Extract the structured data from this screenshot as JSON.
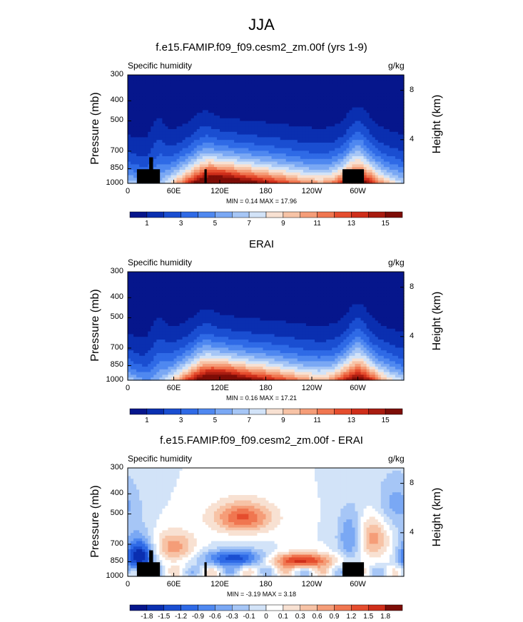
{
  "page_title": "JJA",
  "chart_data": [
    {
      "type": "heatmap",
      "panel_title": "f.e15.FAMIP.f09_f09.cesm2_zm.00f (yrs 1-9)",
      "left_label": "Specific humidity",
      "units": "g/kg",
      "ylabel": "Pressure (mb)",
      "ylabel_right": "Height (km)",
      "pressure_ticks": [
        "300",
        "400",
        "500",
        "700",
        "850",
        "1000"
      ],
      "height_ticks": [
        "8",
        "4"
      ],
      "x_ticks": [
        "0",
        "60E",
        "120E",
        "180",
        "120W",
        "60W"
      ],
      "min_max": "MIN =  0.14  MAX =  17.96",
      "colorbar_labels": [
        "1",
        "3",
        "5",
        "7",
        "9",
        "11",
        "13",
        "15"
      ],
      "colorbar_colors": [
        "#06168c",
        "#0a2fb0",
        "#1a4ed1",
        "#2f6ae6",
        "#4f88f0",
        "#7aa8f4",
        "#a6c6f6",
        "#d2e3f8",
        "#f8e1d2",
        "#f7c3a6",
        "#f59d78",
        "#f07650",
        "#e54d2e",
        "#cf2e1a",
        "#a81c10",
        "#7d0d07"
      ],
      "value_range": [
        0,
        18
      ]
    },
    {
      "type": "heatmap",
      "panel_title": "ERAI",
      "left_label": "Specific humidity",
      "units": "g/kg",
      "ylabel": "Pressure (mb)",
      "ylabel_right": "Height (km)",
      "pressure_ticks": [
        "300",
        "400",
        "500",
        "700",
        "850",
        "1000"
      ],
      "height_ticks": [
        "8",
        "4"
      ],
      "x_ticks": [
        "0",
        "60E",
        "120E",
        "180",
        "120W",
        "60W"
      ],
      "min_max": "MIN =  0.16  MAX =  17.21",
      "colorbar_labels": [
        "1",
        "3",
        "5",
        "7",
        "9",
        "11",
        "13",
        "15"
      ],
      "colorbar_colors": [
        "#06168c",
        "#0a2fb0",
        "#1a4ed1",
        "#2f6ae6",
        "#4f88f0",
        "#7aa8f4",
        "#a6c6f6",
        "#d2e3f8",
        "#f8e1d2",
        "#f7c3a6",
        "#f59d78",
        "#f07650",
        "#e54d2e",
        "#cf2e1a",
        "#a81c10",
        "#7d0d07"
      ],
      "value_range": [
        0,
        18
      ]
    },
    {
      "type": "heatmap",
      "panel_title": "f.e15.FAMIP.f09_f09.cesm2_zm.00f - ERAI",
      "left_label": "Specific humidity",
      "units": "g/kg",
      "ylabel": "Pressure (mb)",
      "ylabel_right": "Height (km)",
      "pressure_ticks": [
        "300",
        "400",
        "500",
        "700",
        "850",
        "1000"
      ],
      "height_ticks": [
        "8",
        "4"
      ],
      "x_ticks": [
        "0",
        "60E",
        "120E",
        "180",
        "120W",
        "60W"
      ],
      "min_max": "MIN = -3.19  MAX =  3.18",
      "colorbar_labels": [
        "-1.8",
        "-1.5",
        "-1.2",
        "-0.9",
        "-0.6",
        "-0.3",
        "-0.1",
        "0",
        "0.1",
        "0.3",
        "0.6",
        "0.9",
        "1.2",
        "1.5",
        "1.8"
      ],
      "colorbar_colors": [
        "#06168c",
        "#0a2fb0",
        "#1a4ed1",
        "#2f6ae6",
        "#4f88f0",
        "#7aa8f4",
        "#a6c6f6",
        "#d2e3f8",
        "#ffffff",
        "#f8e1d2",
        "#f7c3a6",
        "#f59d78",
        "#f07650",
        "#e54d2e",
        "#cf2e1a",
        "#7d0d07"
      ],
      "value_range": [
        -2.0,
        2.0
      ]
    }
  ]
}
